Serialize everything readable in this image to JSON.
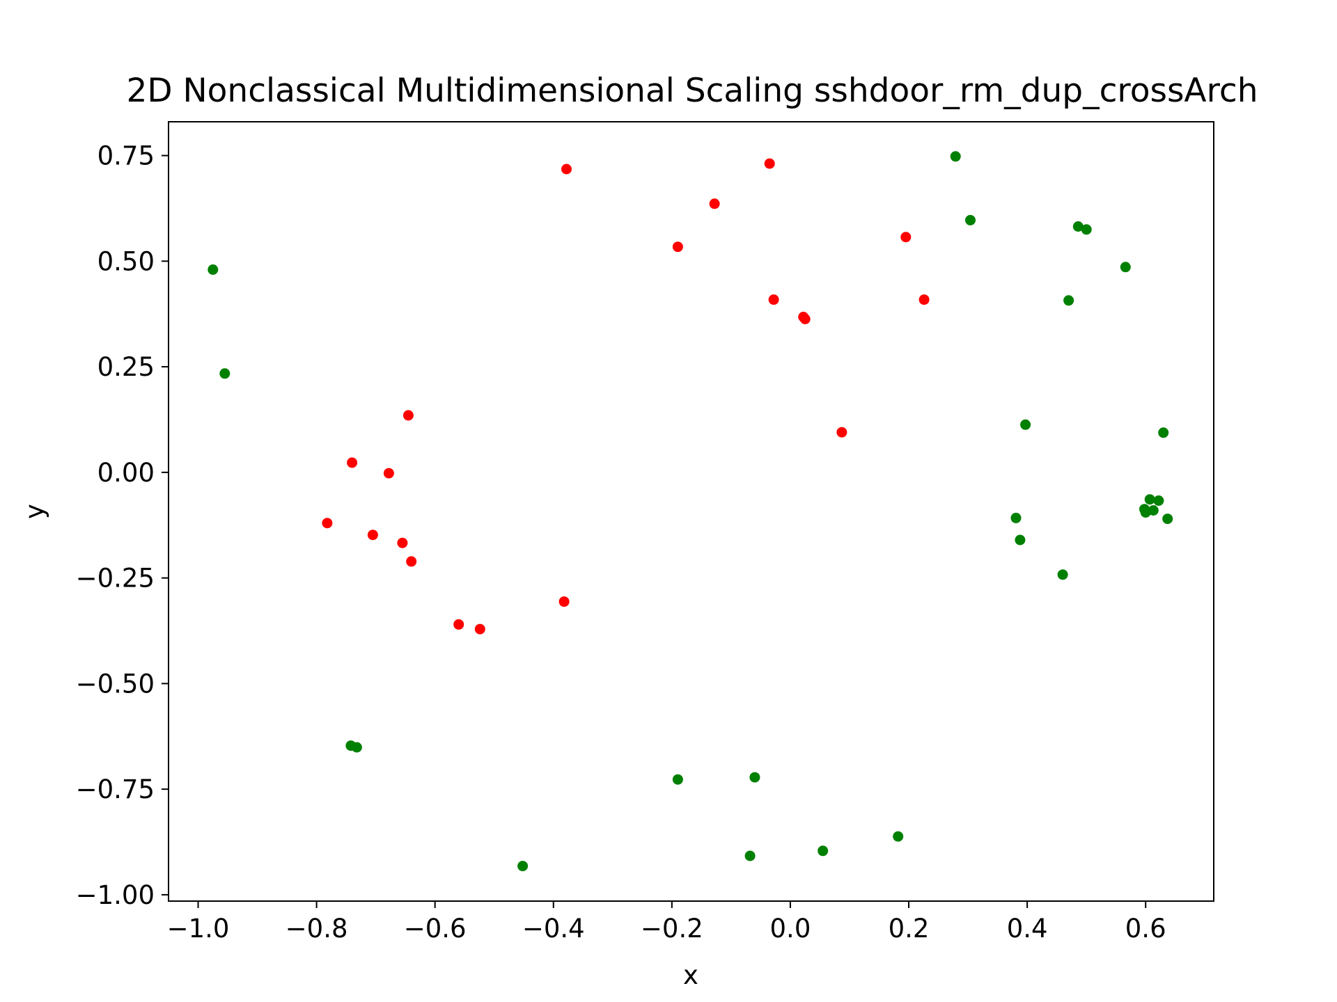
{
  "chart_data": {
    "type": "scatter",
    "title": "2D Nonclassical Multidimensional Scaling sshdoor_rm_dup_crossArch",
    "xlabel": "x",
    "ylabel": "y",
    "xlim": [
      -1.05,
      0.715
    ],
    "ylim": [
      -1.015,
      0.83
    ],
    "xticks": [
      -1.0,
      -0.8,
      -0.6,
      -0.4,
      -0.2,
      0.0,
      0.2,
      0.4,
      0.6
    ],
    "xtick_labels": [
      "−1.0",
      "−0.8",
      "−0.6",
      "−0.4",
      "−0.2",
      "0.0",
      "0.2",
      "0.4",
      "0.6"
    ],
    "yticks": [
      0.75,
      0.5,
      0.25,
      0.0,
      -0.25,
      -0.5,
      -0.75,
      -1.0
    ],
    "ytick_labels": [
      "0.75",
      "0.50",
      "0.25",
      "0.00",
      "−0.25",
      "−0.50",
      "−0.75",
      "−1.00"
    ],
    "grid": false,
    "series": [
      {
        "name": "red",
        "color": "#ff0000",
        "points": [
          [
            -0.378,
            0.718
          ],
          [
            -0.035,
            0.731
          ],
          [
            -0.128,
            0.636
          ],
          [
            -0.19,
            0.534
          ],
          [
            0.195,
            0.557
          ],
          [
            0.226,
            0.409
          ],
          [
            -0.028,
            0.409
          ],
          [
            0.022,
            0.368
          ],
          [
            0.025,
            0.363
          ],
          [
            0.087,
            0.095
          ],
          [
            -0.645,
            0.135
          ],
          [
            -0.74,
            0.023
          ],
          [
            -0.678,
            -0.002
          ],
          [
            -0.782,
            -0.12
          ],
          [
            -0.705,
            -0.148
          ],
          [
            -0.655,
            -0.167
          ],
          [
            -0.64,
            -0.211
          ],
          [
            -0.382,
            -0.306
          ],
          [
            -0.56,
            -0.36
          ],
          [
            -0.524,
            -0.371
          ]
        ]
      },
      {
        "name": "green",
        "color": "#008000",
        "points": [
          [
            0.279,
            0.748
          ],
          [
            0.304,
            0.597
          ],
          [
            0.486,
            0.582
          ],
          [
            0.5,
            0.575
          ],
          [
            0.566,
            0.486
          ],
          [
            0.47,
            0.407
          ],
          [
            -0.975,
            0.48
          ],
          [
            -0.955,
            0.234
          ],
          [
            0.397,
            0.113
          ],
          [
            0.63,
            0.094
          ],
          [
            0.607,
            -0.064
          ],
          [
            0.622,
            -0.067
          ],
          [
            0.598,
            -0.087
          ],
          [
            0.6,
            -0.095
          ],
          [
            0.613,
            -0.09
          ],
          [
            0.637,
            -0.11
          ],
          [
            0.381,
            -0.108
          ],
          [
            0.388,
            -0.16
          ],
          [
            0.46,
            -0.242
          ],
          [
            -0.742,
            -0.647
          ],
          [
            -0.732,
            -0.651
          ],
          [
            -0.06,
            -0.722
          ],
          [
            -0.19,
            -0.727
          ],
          [
            0.182,
            -0.862
          ],
          [
            0.055,
            -0.896
          ],
          [
            -0.068,
            -0.908
          ],
          [
            -0.452,
            -0.932
          ]
        ]
      }
    ]
  }
}
